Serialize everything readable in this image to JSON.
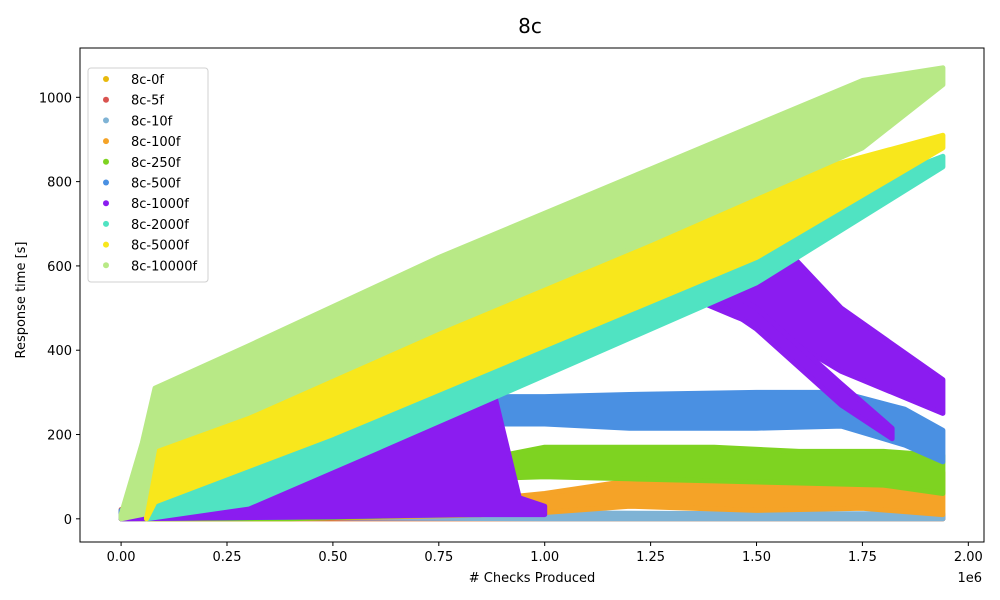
{
  "chart_data": {
    "type": "scatter",
    "title": "8c",
    "xlabel": "# Checks Produced",
    "ylabel": "Response time [s]",
    "x_offset_label": "1e6",
    "xlim": [
      -0.097,
      2.037
    ],
    "ylim": [
      -55,
      1117
    ],
    "x_ticks": [
      0.0,
      0.25,
      0.5,
      0.75,
      1.0,
      1.25,
      1.5,
      1.75,
      2.0
    ],
    "x_tick_labels": [
      "0.00",
      "0.25",
      "0.50",
      "0.75",
      "1.00",
      "1.25",
      "1.50",
      "1.75",
      "2.00"
    ],
    "y_ticks": [
      0,
      200,
      400,
      600,
      800,
      1000
    ],
    "y_tick_labels": [
      "0",
      "200",
      "400",
      "600",
      "800",
      "1000"
    ],
    "grid": false,
    "legend_position": "upper-left",
    "series": [
      {
        "name": "8c-0f",
        "color": "#e8b90c",
        "bands": [
          [
            [
              0.0,
              0,
              5
            ],
            [
              1.94,
              0,
              5
            ]
          ]
        ]
      },
      {
        "name": "8c-5f",
        "color": "#d9534f",
        "bands": [
          [
            [
              0.0,
              0,
              22
            ],
            [
              0.2,
              0,
              18
            ],
            [
              0.6,
              0,
              14
            ],
            [
              1.0,
              0,
              10
            ],
            [
              1.5,
              0,
              8
            ],
            [
              1.94,
              0,
              8
            ]
          ]
        ]
      },
      {
        "name": "8c-10f",
        "color": "#7fb3d5",
        "bands": [
          [
            [
              0.0,
              0,
              12
            ],
            [
              0.5,
              2,
              16
            ],
            [
              1.0,
              0,
              14
            ],
            [
              1.5,
              0,
              12
            ],
            [
              1.94,
              0,
              12
            ]
          ]
        ]
      },
      {
        "name": "8c-100f",
        "color": "#f5a327",
        "bands": [
          [
            [
              0.0,
              0,
              10
            ],
            [
              0.4,
              0,
              28
            ],
            [
              0.8,
              8,
              40
            ],
            [
              1.0,
              15,
              60
            ],
            [
              1.2,
              30,
              90
            ],
            [
              1.5,
              20,
              80
            ],
            [
              1.75,
              25,
              85
            ],
            [
              1.94,
              10,
              110
            ]
          ]
        ]
      },
      {
        "name": "8c-250f",
        "color": "#7ed321",
        "bands": [
          [
            [
              0.05,
              0,
              10
            ],
            [
              0.4,
              0,
              30
            ],
            [
              0.75,
              10,
              60
            ],
            [
              0.85,
              95,
              140
            ],
            [
              1.0,
              100,
              170
            ],
            [
              1.2,
              95,
              170
            ],
            [
              1.4,
              90,
              170
            ],
            [
              1.6,
              85,
              160
            ],
            [
              1.8,
              80,
              160
            ],
            [
              1.94,
              60,
              150
            ]
          ]
        ]
      },
      {
        "name": "8c-500f",
        "color": "#4a90e2",
        "bands": [
          [
            [
              0.0,
              0,
              20
            ],
            [
              0.5,
              5,
              25
            ],
            [
              0.85,
              10,
              60
            ],
            [
              0.86,
              225,
              290
            ],
            [
              1.0,
              225,
              290
            ],
            [
              1.2,
              215,
              295
            ],
            [
              1.5,
              215,
              300
            ],
            [
              1.7,
              220,
              300
            ],
            [
              1.85,
              175,
              260
            ],
            [
              1.94,
              135,
              210
            ]
          ]
        ]
      },
      {
        "name": "8c-1000f",
        "color": "#8b1cf0",
        "bands": [
          [
            [
              0.0,
              0,
              0
            ],
            [
              0.5,
              5,
              150
            ],
            [
              0.8,
              10,
              300
            ],
            [
              0.88,
              10,
              300
            ],
            [
              0.94,
              10,
              50
            ],
            [
              1.0,
              10,
              30
            ]
          ],
          [
            [
              1.26,
              560,
              565
            ],
            [
              1.45,
              480,
              650
            ],
            [
              1.55,
              440,
              660
            ],
            [
              1.7,
              350,
              500
            ],
            [
              1.94,
              250,
              330
            ]
          ],
          [
            [
              1.34,
              560,
              595
            ],
            [
              1.5,
              450,
              500
            ],
            [
              1.7,
              270,
              320
            ],
            [
              1.82,
              190,
              215
            ]
          ]
        ]
      },
      {
        "name": "8c-2000f",
        "color": "#50e3c2",
        "bands": [
          [
            [
              0.06,
              0,
              20
            ],
            [
              0.3,
              35,
              115
            ],
            [
              0.6,
              165,
              300
            ],
            [
              1.0,
              340,
              480
            ],
            [
              1.5,
              560,
              690
            ],
            [
              1.94,
              835,
              860
            ]
          ]
        ]
      },
      {
        "name": "8c-5000f",
        "color": "#f8e71c",
        "bands": [
          [
            [
              0.06,
              0,
              60
            ],
            [
              0.08,
              40,
              170
            ],
            [
              0.5,
              200,
              380
            ],
            [
              1.0,
              410,
              590
            ],
            [
              1.5,
              620,
              790
            ],
            [
              1.94,
              880,
              910
            ]
          ]
        ]
      },
      {
        "name": "8c-10000f",
        "color": "#b8e986",
        "bands": [
          [
            [
              0.0,
              0,
              10
            ],
            [
              0.05,
              10,
              180
            ],
            [
              0.08,
              170,
              310
            ],
            [
              0.3,
              250,
              410
            ],
            [
              0.75,
              450,
              620
            ],
            [
              1.25,
              660,
              830
            ],
            [
              1.75,
              880,
              1040
            ],
            [
              1.94,
              1030,
              1070
            ]
          ]
        ]
      }
    ]
  }
}
